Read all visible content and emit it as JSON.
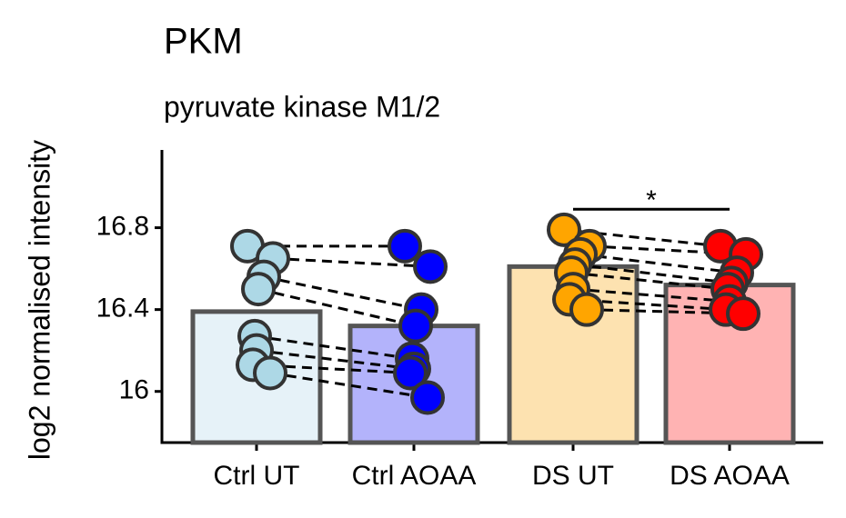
{
  "chart_data": {
    "type": "bar",
    "title": "PKM",
    "subtitle": "pyruvate kinase M1/2",
    "ylabel": "log2 normalised intensity",
    "categories": [
      "Ctrl UT",
      "Ctrl AOAA",
      "DS UT",
      "DS AOAA"
    ],
    "values": [
      16.39,
      16.32,
      16.61,
      16.52
    ],
    "bar_colors": [
      "#e6f2f8",
      "#b3b3fb",
      "#fde2b0",
      "#ffb3b3"
    ],
    "point_colors": [
      "#add8e6",
      "#0000ff",
      "#ffa500",
      "#ff0000"
    ],
    "points": [
      [
        16.71,
        16.65,
        16.56,
        16.5,
        16.27,
        16.2,
        16.13,
        16.09
      ],
      [
        16.71,
        16.61,
        16.4,
        16.32,
        16.16,
        16.11,
        16.09,
        15.97
      ],
      [
        16.79,
        16.71,
        16.67,
        16.62,
        16.58,
        16.5,
        16.45,
        16.4
      ],
      [
        16.71,
        16.67,
        16.58,
        16.53,
        16.5,
        16.44,
        16.4,
        16.38
      ]
    ],
    "pairs": [
      [
        0,
        1
      ],
      [
        2,
        3
      ]
    ],
    "significance": {
      "label": "*",
      "groups": [
        "DS UT",
        "DS AOAA"
      ],
      "y": 16.89
    },
    "ylim": [
      15.75,
      17.18
    ],
    "yticks": [
      16.0,
      16.4,
      16.8
    ]
  }
}
